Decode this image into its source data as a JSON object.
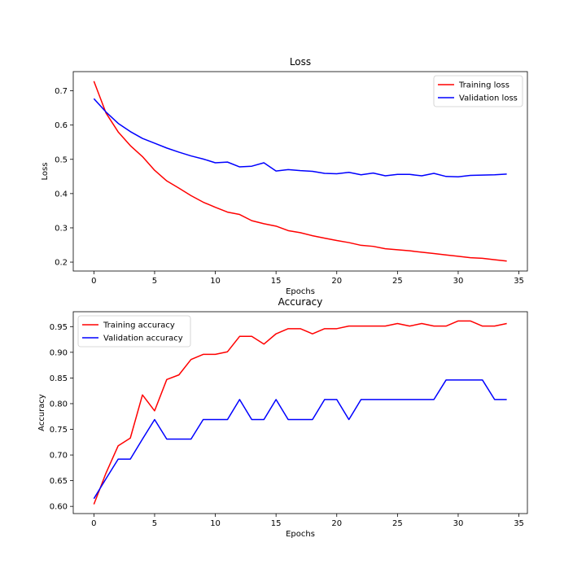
{
  "chart_data": [
    {
      "type": "line",
      "title": "Loss",
      "xlabel": "Epochs",
      "ylabel": "Loss",
      "xlim": [
        -1.7,
        35.7
      ],
      "ylim": [
        0.174,
        0.756
      ],
      "xticks": [
        0,
        5,
        10,
        15,
        20,
        25,
        30,
        35
      ],
      "yticks": [
        0.2,
        0.3,
        0.4,
        0.5,
        0.6,
        0.7
      ],
      "ytick_labels": [
        "0.2",
        "0.3",
        "0.4",
        "0.5",
        "0.6",
        "0.7"
      ],
      "grid": false,
      "legend": "top-right",
      "x": [
        0,
        1,
        2,
        3,
        4,
        5,
        6,
        7,
        8,
        9,
        10,
        11,
        12,
        13,
        14,
        15,
        16,
        17,
        18,
        19,
        20,
        21,
        22,
        23,
        24,
        25,
        26,
        27,
        28,
        29,
        30,
        31,
        32,
        33,
        34
      ],
      "series": [
        {
          "name": "Training loss",
          "color": "#ff0000",
          "values": [
            0.728,
            0.635,
            0.58,
            0.54,
            0.508,
            0.468,
            0.437,
            0.416,
            0.394,
            0.375,
            0.36,
            0.346,
            0.339,
            0.321,
            0.312,
            0.305,
            0.292,
            0.286,
            0.277,
            0.27,
            0.263,
            0.257,
            0.249,
            0.246,
            0.239,
            0.236,
            0.233,
            0.229,
            0.225,
            0.221,
            0.217,
            0.213,
            0.211,
            0.207,
            0.203
          ]
        },
        {
          "name": "Validation loss",
          "color": "#0000ff",
          "values": [
            0.677,
            0.638,
            0.605,
            0.581,
            0.561,
            0.547,
            0.533,
            0.521,
            0.51,
            0.501,
            0.49,
            0.492,
            0.478,
            0.48,
            0.49,
            0.466,
            0.47,
            0.467,
            0.465,
            0.459,
            0.458,
            0.462,
            0.455,
            0.46,
            0.452,
            0.456,
            0.456,
            0.452,
            0.459,
            0.45,
            0.449,
            0.453,
            0.454,
            0.455,
            0.457
          ]
        }
      ]
    },
    {
      "type": "line",
      "title": "Accuracy",
      "xlabel": "Epochs",
      "ylabel": "Accuracy",
      "xlim": [
        -1.7,
        35.7
      ],
      "ylim": [
        0.586,
        0.979
      ],
      "xticks": [
        0,
        5,
        10,
        15,
        20,
        25,
        30,
        35
      ],
      "yticks": [
        0.6,
        0.65,
        0.7,
        0.75,
        0.8,
        0.85,
        0.9,
        0.95
      ],
      "ytick_labels": [
        "0.60",
        "0.65",
        "0.70",
        "0.75",
        "0.80",
        "0.85",
        "0.90",
        "0.95"
      ],
      "grid": false,
      "legend": "top-left",
      "x": [
        0,
        1,
        2,
        3,
        4,
        5,
        6,
        7,
        8,
        9,
        10,
        11,
        12,
        13,
        14,
        15,
        16,
        17,
        18,
        19,
        20,
        21,
        22,
        23,
        24,
        25,
        26,
        27,
        28,
        29,
        30,
        31,
        32,
        33,
        34
      ],
      "series": [
        {
          "name": "Training accuracy",
          "color": "#ff0000",
          "values": [
            0.604,
            0.665,
            0.718,
            0.733,
            0.817,
            0.786,
            0.847,
            0.856,
            0.886,
            0.896,
            0.896,
            0.901,
            0.931,
            0.931,
            0.916,
            0.936,
            0.946,
            0.946,
            0.936,
            0.946,
            0.946,
            0.951,
            0.951,
            0.951,
            0.951,
            0.956,
            0.951,
            0.956,
            0.951,
            0.951,
            0.961,
            0.961,
            0.951,
            0.951,
            0.956
          ]
        },
        {
          "name": "Validation accuracy",
          "color": "#0000ff",
          "values": [
            0.615,
            0.654,
            0.692,
            0.692,
            0.731,
            0.769,
            0.731,
            0.731,
            0.731,
            0.769,
            0.769,
            0.769,
            0.808,
            0.769,
            0.769,
            0.808,
            0.769,
            0.769,
            0.769,
            0.808,
            0.808,
            0.769,
            0.808,
            0.808,
            0.808,
            0.808,
            0.808,
            0.808,
            0.808,
            0.846,
            0.846,
            0.846,
            0.846,
            0.808,
            0.808
          ]
        }
      ]
    }
  ]
}
